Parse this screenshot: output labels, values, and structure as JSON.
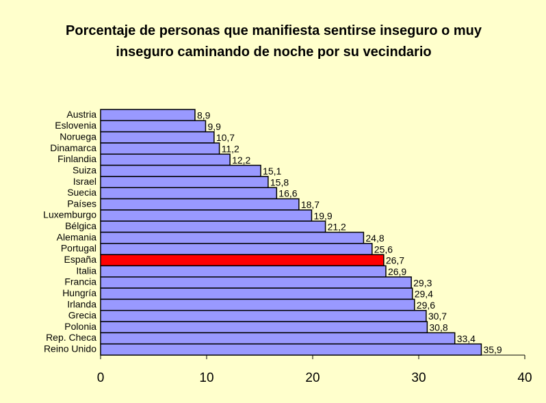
{
  "chart_data": {
    "type": "bar",
    "orientation": "horizontal",
    "title": "Porcentaje de personas que manifiesta sentirse inseguro o muy inseguro caminando de noche por su vecindario",
    "categories": [
      "Austria",
      "Eslovenia",
      "Noruega",
      "Dinamarca",
      "Finlandia",
      "Suiza",
      "Israel",
      "Suecia",
      "Países",
      "Luxemburgo",
      "Bélgica",
      "Alemania",
      "Portugal",
      "España",
      "Italia",
      "Francia",
      "Hungría",
      "Irlanda",
      "Grecia",
      "Polonia",
      "Rep. Checa",
      "Reino Unido"
    ],
    "values": [
      8.9,
      9.9,
      10.7,
      11.2,
      12.2,
      15.1,
      15.8,
      16.6,
      18.7,
      19.9,
      21.2,
      24.8,
      25.6,
      26.7,
      26.9,
      29.3,
      29.4,
      29.6,
      30.7,
      30.8,
      33.4,
      35.9
    ],
    "value_labels": [
      "8,9",
      "9,9",
      "10,7",
      "11,2",
      "12,2",
      "15,1",
      "15,8",
      "16,6",
      "18,7",
      "19,9",
      "21,2",
      "24,8",
      "25,6",
      "26,7",
      "26,9",
      "29,3",
      "29,4",
      "29,6",
      "30,7",
      "30,8",
      "33,4",
      "35,9"
    ],
    "colors": [
      "#9999ff",
      "#9999ff",
      "#9999ff",
      "#9999ff",
      "#9999ff",
      "#9999ff",
      "#9999ff",
      "#9999ff",
      "#9999ff",
      "#9999ff",
      "#9999ff",
      "#9999ff",
      "#9999ff",
      "#ff0000",
      "#9999ff",
      "#9999ff",
      "#9999ff",
      "#9999ff",
      "#9999ff",
      "#9999ff",
      "#9999ff",
      "#9999ff"
    ],
    "xlim": [
      0,
      40
    ],
    "xticks": [
      0,
      10,
      20,
      30,
      40
    ],
    "grid": false
  }
}
